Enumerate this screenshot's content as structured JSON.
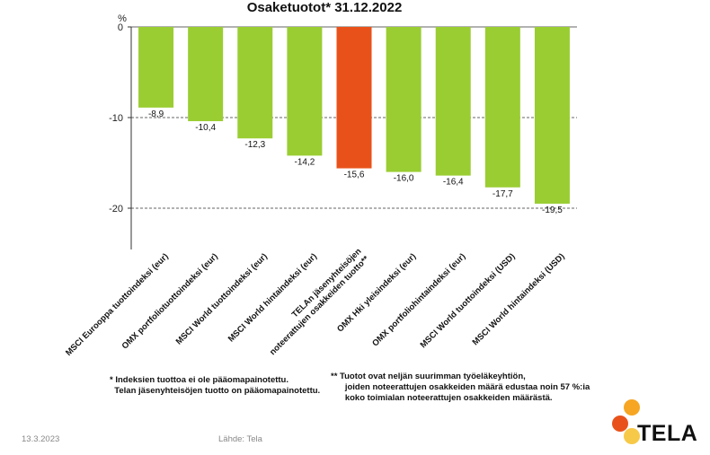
{
  "chart_data": {
    "type": "bar",
    "title": "Osaketuotot* 31.12.2022",
    "ylabel": "%",
    "ylim": [
      -25,
      0
    ],
    "yticks": [
      "0",
      "-10",
      "-20"
    ],
    "ytick_values": [
      0,
      -10,
      -20
    ],
    "categories": [
      "MSCI Eurooppa tuottoindeksi (eur)",
      "OMX portfoliotuottoindeksi (eur)",
      "MSCI World tuottoindeksi (eur)",
      "MSCI World hintaindeksi (eur)",
      "TELAn jäsenyhteisöjen noteerattujen osakkeiden tuotto**",
      "OMX  Hki yleisindeksi (eur)",
      "OMX portfoliohintaindeksi (eur)",
      "MSCI World tuottoindeksi (USD)",
      "MSCI World hintaindeksi (USD)"
    ],
    "values": [
      -8.9,
      -10.4,
      -12.3,
      -14.2,
      -15.6,
      -16.0,
      -16.4,
      -17.7,
      -19.5
    ],
    "value_labels": [
      "-8,9",
      "-10,4",
      "-12,3",
      "-14,2",
      "-15,6",
      "-16,0",
      "-16,4",
      "-17,7",
      "-19,5"
    ],
    "highlight_index": 4,
    "colors": {
      "bar": "#9acd32",
      "highlight": "#e8521a",
      "gridline": "#666666"
    },
    "grid": "dashed horizontal at ticks"
  },
  "footnotes": {
    "left": [
      "* Indeksien tuottoa ei ole pääomapainotettu.",
      "  Telan jäsenyhteisöjen tuotto on pääomapainotettu."
    ],
    "right": [
      "** Tuotot ovat neljän suurimman työeläkeyhtiön,",
      "      joiden noteerattujen osakkeiden määrä edustaa noin 57 %:ia",
      "      koko toimialan noteerattujen osakkeiden määrästä."
    ]
  },
  "footer": {
    "date": "13.3.2023",
    "source": "Lähde: Tela"
  },
  "logo": {
    "text": "TELA",
    "colors": [
      "#f6a623",
      "#e8521a",
      "#f7c948"
    ]
  }
}
